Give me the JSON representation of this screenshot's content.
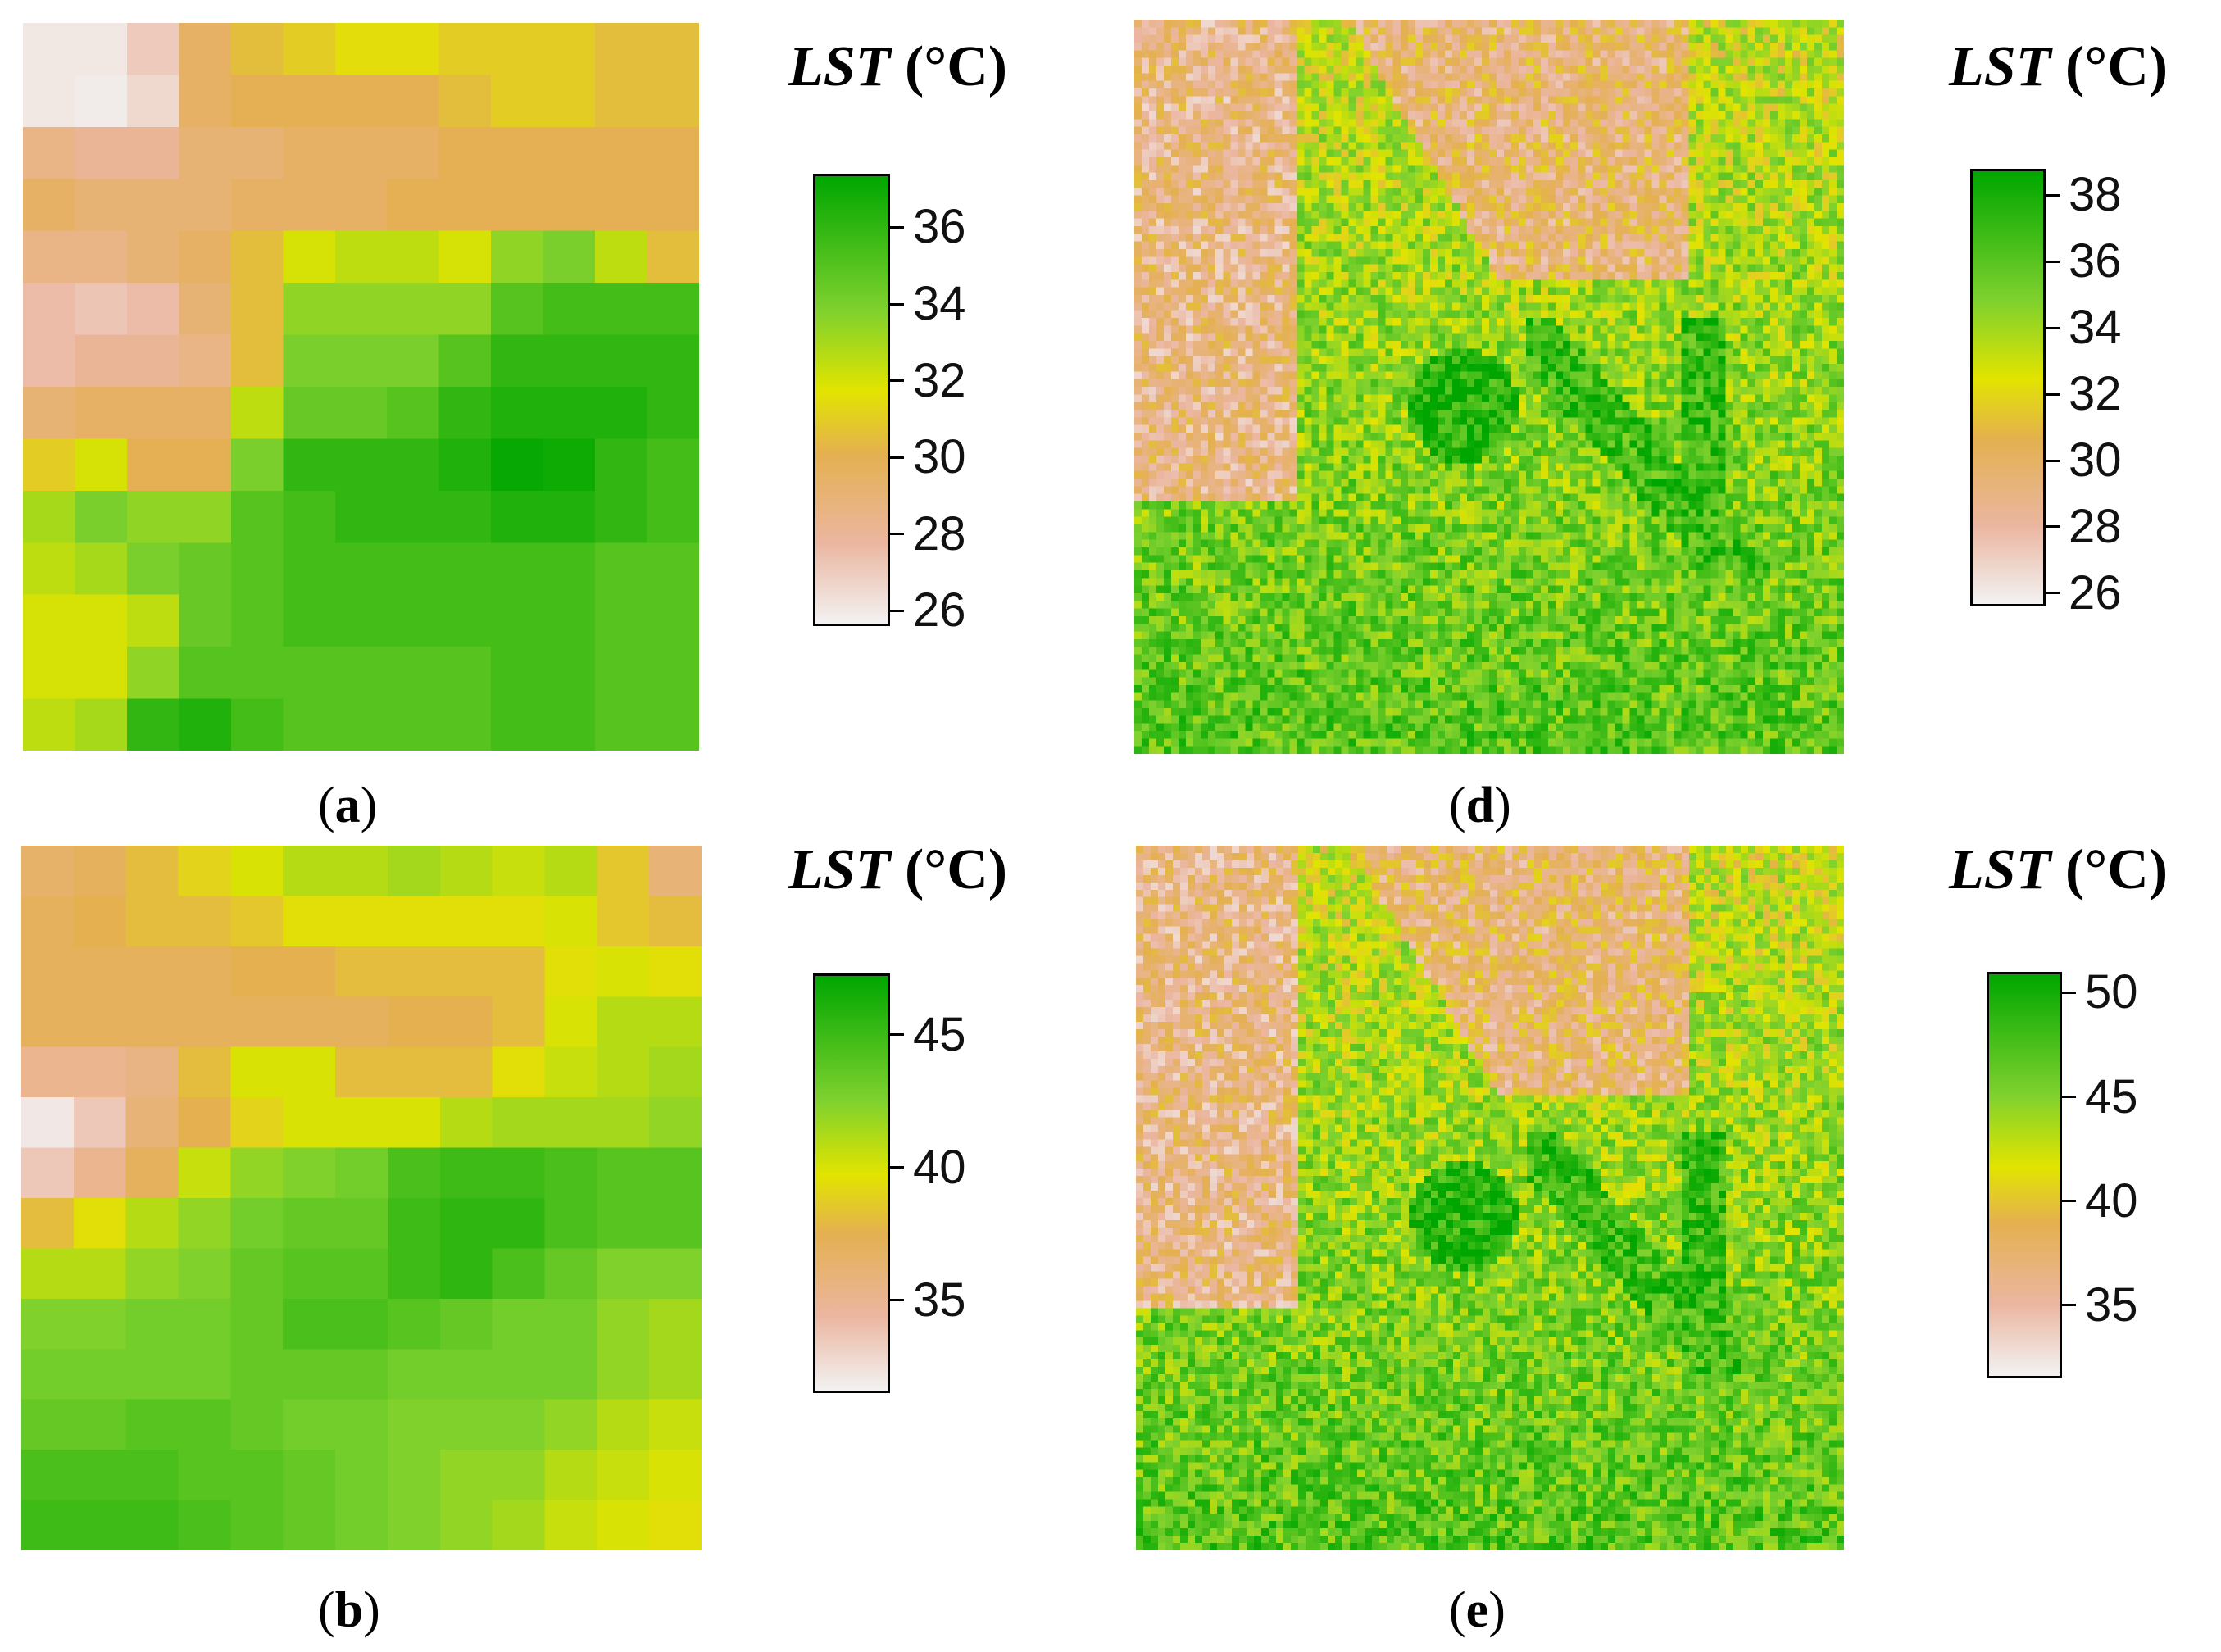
{
  "chart_data": [
    {
      "type": "heatmap",
      "panel": "a",
      "caption": "a",
      "legend_title_var": "LST",
      "legend_title_unit": "(°C)",
      "colorbar": {
        "min": 25.6,
        "max": 37.4,
        "ticks": [
          36,
          34,
          32,
          30,
          28,
          26
        ]
      },
      "grid_rows": 14,
      "grid_cols": 13,
      "values": [
        [
          26,
          26,
          27,
          29.5,
          30.5,
          31,
          31.5,
          31.5,
          31,
          31,
          31,
          30.5,
          30.5
        ],
        [
          26,
          25.8,
          26.5,
          29.5,
          30,
          30,
          30,
          30,
          30.5,
          31,
          31,
          30.5,
          30.5
        ],
        [
          28.5,
          28,
          28,
          29,
          29,
          29.5,
          29.5,
          29.5,
          30,
          30,
          30,
          30,
          30
        ],
        [
          29.5,
          29,
          29,
          29,
          29.5,
          29.5,
          29.5,
          30,
          30,
          30,
          30,
          30,
          30
        ],
        [
          28.5,
          28.5,
          29,
          29.5,
          30.5,
          32,
          32.5,
          32.5,
          32,
          33.5,
          34,
          32.5,
          30.5
        ],
        [
          27.5,
          27.2,
          27.5,
          29,
          30.5,
          33.5,
          33.5,
          33.5,
          33.5,
          35,
          35.5,
          35.5,
          35.5
        ],
        [
          27.5,
          28,
          28,
          28.5,
          30.5,
          34,
          34,
          34,
          35,
          36,
          36,
          36,
          36
        ],
        [
          29,
          29.5,
          29.5,
          29.5,
          32.5,
          34.5,
          34.5,
          35,
          36,
          36.5,
          36.5,
          36.5,
          36
        ],
        [
          31,
          32,
          30,
          30,
          34,
          36,
          36,
          36,
          36.5,
          37.2,
          37,
          36,
          35.5
        ],
        [
          33,
          34,
          33.5,
          33.5,
          35,
          35.5,
          36,
          36,
          36,
          36.5,
          36.5,
          36,
          35.5
        ],
        [
          32.5,
          33,
          34,
          34.5,
          35,
          35.5,
          35.5,
          35.5,
          35.5,
          35.5,
          35.5,
          35,
          35
        ],
        [
          32,
          32,
          32.5,
          34.5,
          35,
          35.5,
          35.5,
          35.5,
          35.5,
          35.5,
          35.5,
          35,
          35
        ],
        [
          32,
          32,
          33.5,
          35,
          35,
          35,
          35,
          35,
          35,
          35.5,
          35.5,
          35,
          35
        ],
        [
          32.5,
          33,
          36,
          36.5,
          35.5,
          35,
          35,
          35,
          35,
          35.5,
          35.5,
          35,
          35
        ]
      ]
    },
    {
      "type": "heatmap",
      "panel": "b",
      "caption": "b",
      "legend_title_var": "LST",
      "legend_title_unit": "(°C)",
      "colorbar": {
        "min": 31.5,
        "max": 47.3,
        "ticks": [
          45,
          40,
          35
        ]
      },
      "grid_rows": 14,
      "grid_cols": 13,
      "values": [
        [
          36.5,
          37,
          38,
          39,
          40,
          41,
          41,
          41.5,
          41,
          40.5,
          41,
          38.5,
          36
        ],
        [
          37,
          37.5,
          38,
          38,
          38.5,
          39.5,
          39.5,
          39.5,
          39.5,
          39.5,
          40,
          38.5,
          38
        ],
        [
          37,
          37,
          37,
          37,
          37.5,
          37.5,
          38,
          38,
          38,
          38,
          39.5,
          40,
          39.5
        ],
        [
          37,
          37,
          37,
          37,
          37,
          37,
          37,
          37.5,
          37.5,
          38,
          40,
          41,
          41
        ],
        [
          35,
          35,
          35.5,
          38,
          40,
          40,
          38,
          38,
          38,
          39.5,
          40.5,
          41,
          41.5
        ],
        [
          32,
          33.5,
          36,
          37.5,
          39,
          40,
          40,
          40,
          41,
          41.5,
          41.5,
          41.5,
          42
        ],
        [
          33.5,
          35,
          37,
          40.5,
          42,
          42.5,
          43,
          44.5,
          45,
          45,
          44.5,
          44,
          44
        ],
        [
          38,
          39.5,
          41,
          42,
          43,
          43.5,
          43.5,
          45,
          45.5,
          45.5,
          44.5,
          44,
          44
        ],
        [
          41,
          41,
          42,
          42.5,
          43.5,
          44,
          44,
          45,
          45.5,
          44.5,
          43.5,
          42.5,
          42.5
        ],
        [
          42.5,
          42.5,
          43,
          43,
          43.5,
          44.5,
          44.5,
          44,
          43.5,
          43,
          43,
          42,
          41.5
        ],
        [
          43,
          43,
          43,
          43,
          43.5,
          43.5,
          43.5,
          43,
          43,
          43,
          43,
          42,
          41.5
        ],
        [
          43.5,
          43.5,
          44,
          44,
          43.5,
          43,
          43,
          42.5,
          42.5,
          42.5,
          42,
          41,
          40.5
        ],
        [
          44.5,
          44.5,
          44.5,
          44,
          44,
          43.5,
          43,
          42.5,
          42,
          42,
          41,
          40.5,
          40
        ],
        [
          45,
          45,
          45,
          44.5,
          44,
          43.5,
          43,
          42.5,
          42,
          41.5,
          40.5,
          40,
          39.5
        ]
      ]
    },
    {
      "type": "heatmap",
      "panel": "d",
      "caption": "d",
      "legend_title_var": "LST",
      "legend_title_unit": "(°C)",
      "colorbar": {
        "min": 25.6,
        "max": 38.8,
        "ticks": [
          38,
          36,
          34,
          32,
          30,
          28,
          26
        ]
      },
      "fine_resolution": true
    },
    {
      "type": "heatmap",
      "panel": "e",
      "caption": "e",
      "legend_title_var": "LST",
      "legend_title_unit": "(°C)",
      "colorbar": {
        "min": 31.5,
        "max": 51,
        "ticks": [
          50,
          45,
          40,
          35
        ]
      },
      "fine_resolution": true
    }
  ]
}
